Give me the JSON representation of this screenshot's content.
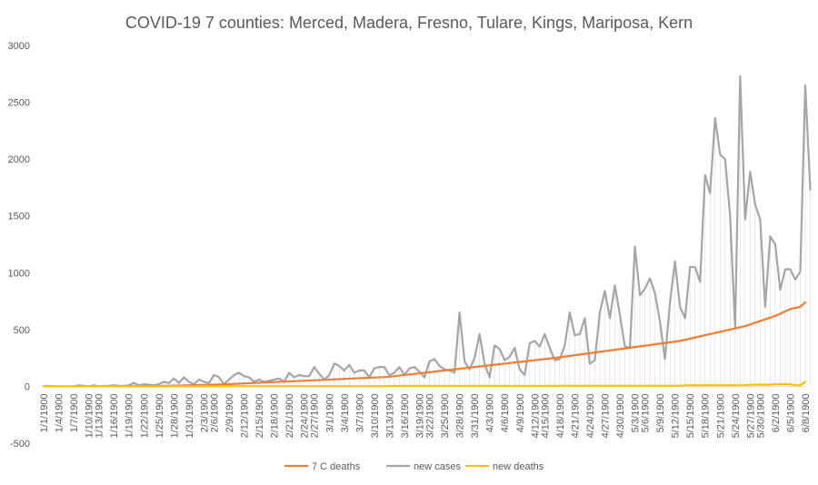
{
  "chart_data": {
    "type": "line",
    "title": "COVID-19 7 counties:  Merced, Madera, Fresno, Tulare, Kings, Mariposa, Kern",
    "xlabel": "",
    "ylabel": "",
    "ylim": [
      -500,
      3000
    ],
    "yticks": [
      -500,
      0,
      500,
      1000,
      1500,
      2000,
      2500,
      3000
    ],
    "yticklabels": [
      "-500",
      "0",
      "500",
      "1000",
      "1500",
      "2000",
      "2500",
      "3000"
    ],
    "x_tick_labels": [
      "1/1/1900",
      "1/4/1900",
      "1/7/1900",
      "1/10/1900",
      "1/13/1900",
      "1/16/1900",
      "1/19/1900",
      "1/22/1900",
      "1/25/1900",
      "1/28/1900",
      "1/31/1900",
      "2/3/1900",
      "2/6/1900",
      "2/9/1900",
      "2/12/1900",
      "2/15/1900",
      "2/18/1900",
      "2/21/1900",
      "2/24/1900",
      "2/27/1900",
      "3/1/1900",
      "3/4/1900",
      "3/7/1900",
      "3/10/1900",
      "3/13/1900",
      "3/16/1900",
      "3/19/1900",
      "3/22/1900",
      "3/25/1900",
      "3/28/1900",
      "3/31/1900",
      "4/3/1900",
      "4/6/1900",
      "4/9/1900",
      "4/12/1900",
      "4/15/1900",
      "4/18/1900",
      "4/21/1900",
      "4/24/1900",
      "4/27/1900",
      "4/30/1900",
      "5/3/1900",
      "5/6/1900",
      "5/9/1900",
      "5/12/1900",
      "5/15/1900",
      "5/18/1900",
      "5/21/1900",
      "5/24/1900",
      "5/27/1900",
      "5/30/1900",
      "6/2/1900",
      "6/5/1900",
      "6/8/1900"
    ],
    "grid": false,
    "legend_position": "bottom",
    "series": [
      {
        "name": "7 C deaths",
        "color": "#ED7D31",
        "values": [
          0,
          0,
          0,
          0,
          0,
          0,
          0,
          0,
          0,
          0,
          0,
          0,
          0,
          1,
          1,
          1,
          1,
          2,
          2,
          3,
          3,
          4,
          4,
          5,
          5,
          6,
          7,
          8,
          9,
          10,
          11,
          12,
          13,
          15,
          16,
          17,
          19,
          20,
          22,
          24,
          26,
          28,
          30,
          32,
          34,
          36,
          38,
          40,
          42,
          44,
          46,
          48,
          50,
          52,
          54,
          56,
          58,
          60,
          62,
          64,
          66,
          68,
          70,
          72,
          74,
          76,
          78,
          80,
          82,
          85,
          90,
          95,
          100,
          105,
          110,
          115,
          120,
          125,
          130,
          135,
          140,
          145,
          150,
          155,
          160,
          165,
          170,
          175,
          180,
          185,
          190,
          195,
          200,
          205,
          210,
          215,
          220,
          225,
          230,
          235,
          240,
          245,
          250,
          256,
          262,
          268,
          274,
          280,
          286,
          292,
          298,
          304,
          310,
          316,
          322,
          328,
          334,
          340,
          346,
          352,
          358,
          364,
          370,
          376,
          382,
          388,
          394,
          400,
          410,
          420,
          430,
          440,
          450,
          460,
          470,
          480,
          490,
          500,
          510,
          520,
          530,
          545,
          560,
          575,
          590,
          605,
          620,
          640,
          660,
          680,
          690,
          700,
          740
        ]
      },
      {
        "name": "new cases",
        "color": "#A5A5A5",
        "values": [
          0,
          5,
          0,
          0,
          0,
          0,
          0,
          10,
          5,
          0,
          10,
          0,
          5,
          5,
          10,
          5,
          5,
          10,
          30,
          10,
          20,
          15,
          10,
          20,
          40,
          30,
          70,
          30,
          80,
          40,
          20,
          60,
          40,
          30,
          100,
          80,
          20,
          60,
          100,
          120,
          90,
          80,
          40,
          60,
          40,
          50,
          60,
          70,
          40,
          120,
          80,
          100,
          90,
          90,
          170,
          110,
          60,
          100,
          200,
          180,
          140,
          190,
          120,
          140,
          140,
          80,
          160,
          170,
          170,
          100,
          120,
          170,
          100,
          160,
          170,
          130,
          80,
          220,
          240,
          180,
          150,
          140,
          120,
          650,
          220,
          150,
          250,
          460,
          200,
          80,
          360,
          330,
          230,
          260,
          340,
          150,
          100,
          380,
          400,
          350,
          460,
          340,
          230,
          240,
          360,
          650,
          450,
          460,
          600,
          200,
          230,
          650,
          840,
          600,
          890,
          630,
          350,
          340,
          1230,
          800,
          860,
          950,
          820,
          570,
          240,
          740,
          1100,
          700,
          600,
          1050,
          1050,
          920,
          1860,
          1700,
          2360,
          2040,
          2000,
          1500,
          520,
          2730,
          1470,
          1890,
          1600,
          1470,
          700,
          1320,
          1250,
          850,
          1030,
          1030,
          940,
          1010,
          2650,
          1730
        ]
      },
      {
        "name": "new deaths",
        "color": "#FFC000",
        "values": [
          0,
          0,
          0,
          0,
          0,
          0,
          0,
          0,
          0,
          0,
          0,
          0,
          0,
          1,
          0,
          0,
          0,
          1,
          0,
          1,
          0,
          1,
          0,
          1,
          0,
          1,
          1,
          1,
          1,
          1,
          1,
          1,
          1,
          2,
          1,
          1,
          2,
          1,
          2,
          2,
          2,
          2,
          2,
          2,
          2,
          2,
          2,
          2,
          2,
          2,
          2,
          2,
          2,
          2,
          2,
          2,
          2,
          2,
          2,
          2,
          2,
          2,
          2,
          2,
          2,
          2,
          2,
          2,
          2,
          3,
          5,
          5,
          5,
          5,
          5,
          5,
          5,
          5,
          5,
          5,
          5,
          5,
          5,
          5,
          5,
          5,
          5,
          5,
          5,
          5,
          5,
          5,
          5,
          5,
          5,
          5,
          5,
          5,
          5,
          5,
          5,
          5,
          5,
          6,
          6,
          6,
          6,
          6,
          6,
          6,
          6,
          6,
          6,
          6,
          6,
          6,
          6,
          6,
          6,
          6,
          6,
          6,
          6,
          6,
          6,
          6,
          6,
          6,
          10,
          10,
          10,
          10,
          10,
          10,
          10,
          10,
          10,
          10,
          10,
          10,
          10,
          15,
          15,
          15,
          15,
          15,
          20,
          20,
          20,
          20,
          10,
          10,
          40
        ]
      }
    ]
  }
}
